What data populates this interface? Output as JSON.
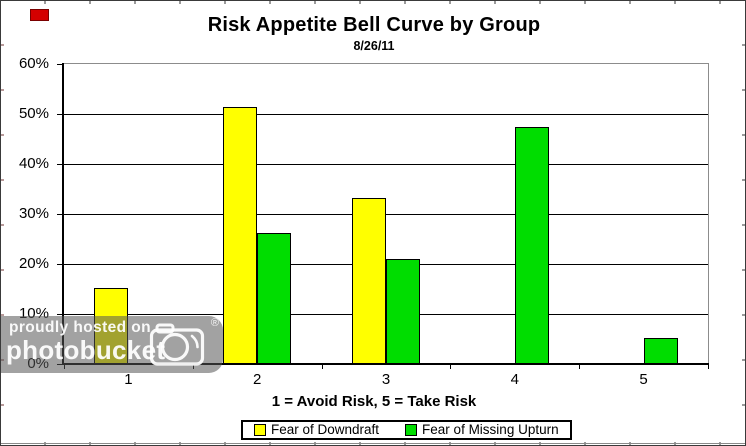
{
  "chart_data": {
    "type": "bar",
    "title": "Risk Appetite Bell Curve by Group",
    "subtitle": "8/26/11",
    "categories": [
      "1",
      "2",
      "3",
      "4",
      "5"
    ],
    "series": [
      {
        "name": "Fear of Downdraft",
        "color": "#ffff00",
        "values": [
          15.2,
          51.5,
          33.3,
          0,
          0
        ]
      },
      {
        "name": "Fear of Missing Upturn",
        "color": "#00dd00",
        "values": [
          0,
          26.3,
          21.1,
          47.4,
          5.3
        ]
      }
    ],
    "xlabel": "1 = Avoid Risk, 5 = Take Risk",
    "ylabel": "",
    "ylim": [
      0,
      60
    ],
    "ytick_step": 10,
    "ytick_format": "percent",
    "grid": true,
    "legend_position": "bottom",
    "bar_border_color": "#000000",
    "gridline_color": "#000000",
    "plot_border_color": "#8c8c8c"
  },
  "watermark": {
    "line1": "proudly hosted on",
    "line2": "photobucket",
    "registered": "®",
    "camera_icon": "camera-icon",
    "text_color": "#ffffff"
  },
  "artifact": {
    "red_box_color": "#d40000"
  }
}
